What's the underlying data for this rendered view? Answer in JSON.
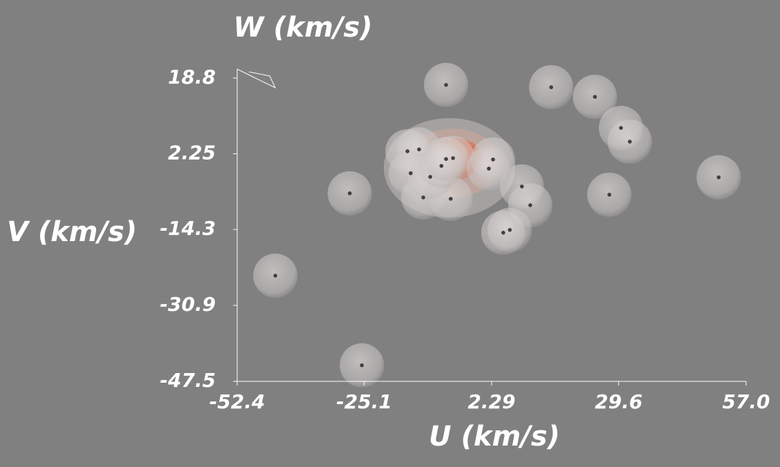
{
  "chart_data": {
    "type": "scatter",
    "x_label": "U (km/s)",
    "y_label": "V (km/s)",
    "z_label": "W (km/s)",
    "x": [
      -7.5,
      15.1,
      24.5,
      30.1,
      32.0,
      51.1,
      27.6,
      -28.2,
      -44.2,
      -25.6,
      8.8,
      10.6,
      4.8,
      6.2,
      -15.8,
      -13.3,
      -15.1,
      -12.4,
      -6.5,
      2.6,
      1.7,
      -10.9,
      -6.0,
      -8.5,
      -7.5
    ],
    "values": [
      17.3,
      16.8,
      14.7,
      7.9,
      4.9,
      -2.9,
      -6.7,
      -6.4,
      -24.4,
      -44.0,
      -4.9,
      -9.0,
      -15.0,
      -14.4,
      2.8,
      3.2,
      -2.0,
      -7.3,
      -7.6,
      1.0,
      -1.0,
      -2.8,
      1.3,
      -0.4,
      1.1
    ],
    "color": "#404040",
    "xlim": [
      -52.4,
      57.0
    ],
    "xticks": [
      -52.4,
      -25.1,
      2.29,
      29.6,
      {
        "value": 57,
        "label": "57.0"
      }
    ],
    "ylim": [
      -47.5,
      18.8
    ],
    "yticks": [
      18.8,
      2.25,
      -14.3,
      -30.9,
      -47.5
    ]
  }
}
